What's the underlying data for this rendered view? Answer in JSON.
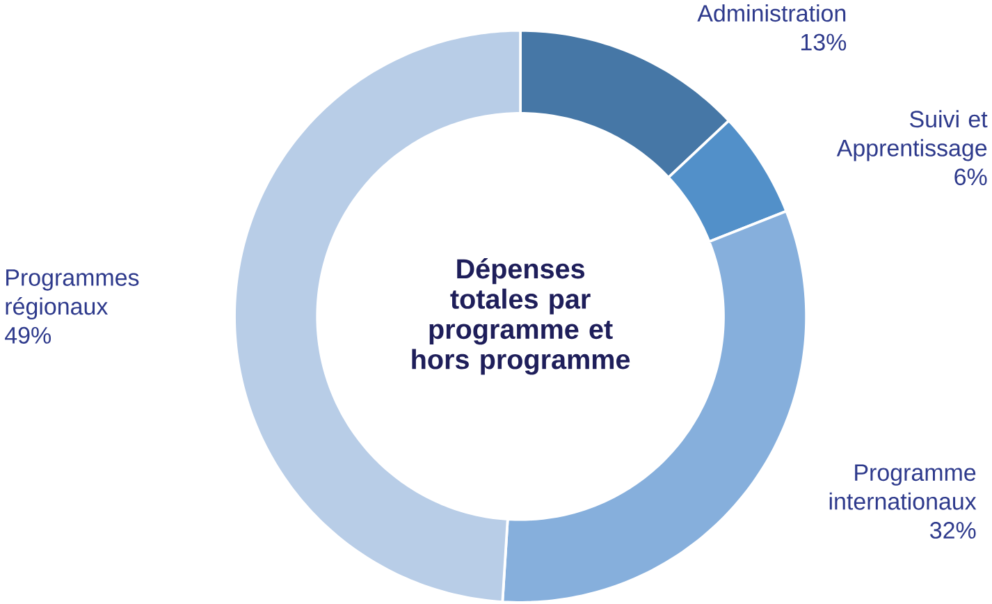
{
  "chart_data": {
    "type": "donut",
    "title": "Dépenses totales par programme et hors programme",
    "categories": [
      "Administration",
      "Suivi et Apprentissage",
      "Programme internationaux",
      "Programmes régionaux"
    ],
    "values": [
      13,
      6,
      32,
      49
    ],
    "value_labels": [
      "13%",
      "6%",
      "32%",
      "49%"
    ],
    "colors": [
      "#4677a6",
      "#5290c9",
      "#86afdc",
      "#b8cde7"
    ]
  }
}
